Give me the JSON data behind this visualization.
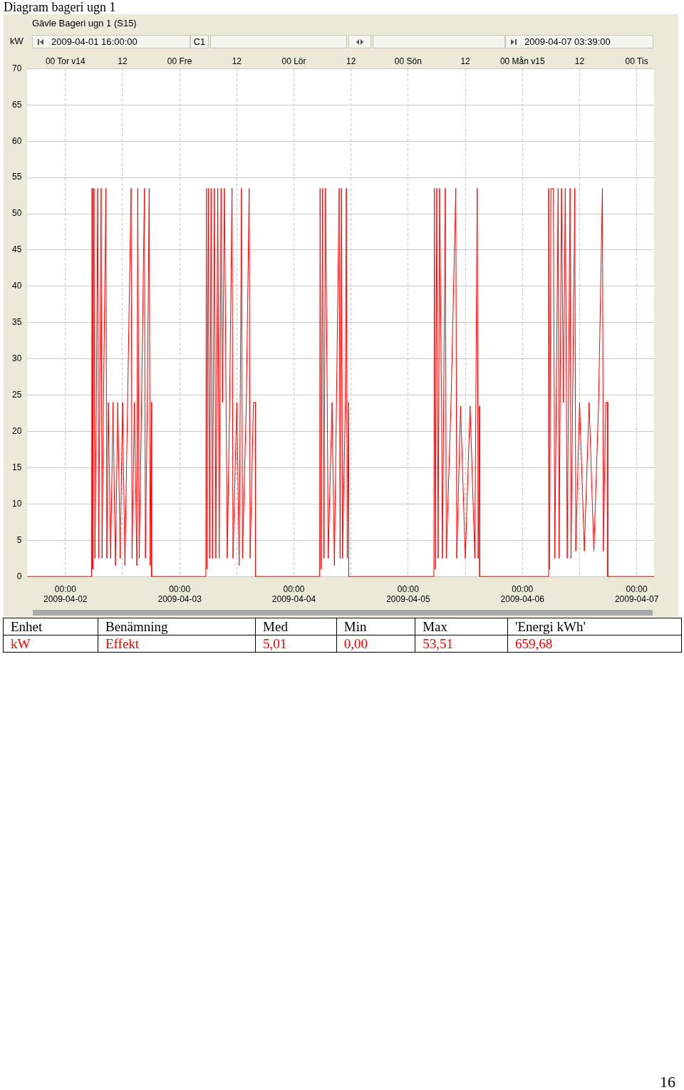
{
  "chart_data": {
    "type": "line",
    "title": "Diagram bageri ugn 1",
    "subtitle": "Gävle Bageri ugn 1 (S15)",
    "ylabel": "kW",
    "annotations": [
      "2009-04-01 16:00:00",
      "C1",
      "2009-04-07 03:39:00",
      "Enhet",
      "Benämning",
      "Med",
      "Min",
      "Max",
      "'Energi kWh'",
      "kW",
      "5,01",
      "0,00",
      "53,51",
      "659,68",
      "16"
    ],
    "xlim": [
      "2009-04-01T16:00",
      "2009-04-07T03:39"
    ],
    "xticks": [
      {
        "value": "2009-04-02T00:00",
        "label": "00:00 2009-04-02"
      },
      {
        "value": "2009-04-03T00:00",
        "label": "00:00 2009-04-03"
      },
      {
        "value": "2009-04-04T00:00",
        "label": "00:00 2009-04-04"
      },
      {
        "value": "2009-04-05T00:00",
        "label": "00:00 2009-04-05"
      },
      {
        "value": "2009-04-06T00:00",
        "label": "00:00 2009-04-06"
      },
      {
        "value": "2009-04-07T00:00",
        "label": "00:00 2009-04-07"
      }
    ],
    "x2lim": [
      "2009-04-01T16:00",
      "2009-04-07T03:39"
    ],
    "x2ticks": [
      {
        "value": "2009-04-02T00:00",
        "label": "00 Tor v14"
      },
      {
        "value": "2009-04-02T12:00",
        "label": "12"
      },
      {
        "value": "2009-04-03T00:00",
        "label": "00 Fre"
      },
      {
        "value": "2009-04-03T12:00",
        "label": "12"
      },
      {
        "value": "2009-04-04T00:00",
        "label": "00 Lör"
      },
      {
        "value": "2009-04-04T12:00",
        "label": "12"
      },
      {
        "value": "2009-04-05T00:00",
        "label": "00 Sön"
      },
      {
        "value": "2009-04-05T12:00",
        "label": "12"
      },
      {
        "value": "2009-04-06T00:00",
        "label": "00 Mån v15"
      },
      {
        "value": "2009-04-06T12:00",
        "label": "12"
      },
      {
        "value": "2009-04-07T00:00",
        "label": "00 Tis"
      }
    ],
    "ylim": [
      0,
      70
    ],
    "yticks": [
      0,
      5,
      10,
      15,
      20,
      25,
      30,
      35,
      40,
      45,
      50,
      55,
      60,
      65,
      70
    ],
    "grid": true,
    "marker": "none",
    "line_style": "solid",
    "legend": false,
    "series": [
      {
        "name": "Effekt",
        "color": "#ff0000",
        "x": [
          "2009-04-01T16:00",
          "2009-04-02T05:30",
          "2009-04-02T05:36",
          "2009-04-02T05:42",
          "2009-04-02T05:48",
          "2009-04-02T06:00",
          "2009-04-02T06:12",
          "2009-04-02T06:30",
          "2009-04-02T06:48",
          "2009-04-02T07:00",
          "2009-04-02T07:30",
          "2009-04-02T07:42",
          "2009-04-02T08:00",
          "2009-04-02T08:30",
          "2009-04-02T08:42",
          "2009-04-02T09:00",
          "2009-04-02T09:30",
          "2009-04-02T10:00",
          "2009-04-02T10:30",
          "2009-04-02T11:00",
          "2009-04-02T11:30",
          "2009-04-02T12:00",
          "2009-04-02T12:30",
          "2009-04-02T13:48",
          "2009-04-02T14:00",
          "2009-04-02T14:30",
          "2009-04-02T15:00",
          "2009-04-02T15:12",
          "2009-04-02T15:30",
          "2009-04-02T16:00",
          "2009-04-02T16:36",
          "2009-04-02T16:48",
          "2009-04-02T17:12",
          "2009-04-02T17:36",
          "2009-04-02T17:48",
          "2009-04-02T18:05",
          "2009-04-02T18:06",
          "2009-04-03T05:30",
          "2009-04-03T05:36",
          "2009-04-03T05:42",
          "2009-04-03T06:00",
          "2009-04-03T06:18",
          "2009-04-03T06:36",
          "2009-04-03T06:54",
          "2009-04-03T07:18",
          "2009-04-03T07:36",
          "2009-04-03T08:00",
          "2009-04-03T08:18",
          "2009-04-03T08:42",
          "2009-04-03T09:00",
          "2009-04-03T09:24",
          "2009-04-03T10:00",
          "2009-04-03T10:30",
          "2009-04-03T11:00",
          "2009-04-03T11:12",
          "2009-04-03T12:00",
          "2009-04-03T12:30",
          "2009-04-03T13:00",
          "2009-04-03T13:12",
          "2009-04-03T14:00",
          "2009-04-03T14:36",
          "2009-04-03T14:48",
          "2009-04-03T15:30",
          "2009-04-03T15:54",
          "2009-04-03T15:55",
          "2009-04-04T05:24",
          "2009-04-04T05:30",
          "2009-04-04T05:42",
          "2009-04-04T06:00",
          "2009-04-04T06:18",
          "2009-04-04T06:36",
          "2009-04-04T07:00",
          "2009-04-04T07:12",
          "2009-04-04T08:00",
          "2009-04-04T08:30",
          "2009-04-04T09:30",
          "2009-04-04T09:42",
          "2009-04-04T10:00",
          "2009-04-04T10:12",
          "2009-04-04T10:48",
          "2009-04-04T11:00",
          "2009-04-04T11:12",
          "2009-04-04T11:30",
          "2009-04-04T11:31",
          "2009-04-05T05:24",
          "2009-04-05T05:30",
          "2009-04-05T05:42",
          "2009-04-05T06:00",
          "2009-04-05T06:18",
          "2009-04-05T06:36",
          "2009-04-05T07:00",
          "2009-04-05T07:12",
          "2009-04-05T07:48",
          "2009-04-05T08:00",
          "2009-04-05T09:00",
          "2009-04-05T10:00",
          "2009-04-05T10:12",
          "2009-04-05T11:00",
          "2009-04-05T12:00",
          "2009-04-05T13:00",
          "2009-04-05T14:00",
          "2009-04-05T14:30",
          "2009-04-05T14:42",
          "2009-04-05T15:00",
          "2009-04-05T15:01",
          "2009-04-06T05:24",
          "2009-04-06T05:30",
          "2009-04-06T05:42",
          "2009-04-06T06:00",
          "2009-04-06T06:30",
          "2009-04-06T06:48",
          "2009-04-06T07:30",
          "2009-04-06T07:42",
          "2009-04-06T08:12",
          "2009-04-06T08:36",
          "2009-04-06T09:00",
          "2009-04-06T09:24",
          "2009-04-06T10:00",
          "2009-04-06T10:12",
          "2009-04-06T11:00",
          "2009-04-06T11:12",
          "2009-04-06T12:00",
          "2009-04-06T13:00",
          "2009-04-06T14:00",
          "2009-04-06T15:00",
          "2009-04-06T16:00",
          "2009-04-06T16:48",
          "2009-04-06T17:00",
          "2009-04-06T17:30",
          "2009-04-06T17:54",
          "2009-04-06T17:55",
          "2009-04-07T03:39"
        ],
        "values": [
          0,
          0,
          53.5,
          1,
          24,
          53.5,
          2.5,
          24,
          53.5,
          2.5,
          53.5,
          2.5,
          24,
          53.5,
          2.5,
          24,
          2.5,
          24,
          1.5,
          24,
          2.5,
          24,
          1.5,
          53.5,
          2.5,
          24,
          1.5,
          53.5,
          2.5,
          24,
          53.5,
          2.5,
          24,
          53.5,
          1.5,
          24,
          0,
          0,
          53.5,
          1,
          53.5,
          2.5,
          53.5,
          2.5,
          53.5,
          2.5,
          53.5,
          2.5,
          53.5,
          24,
          53.5,
          2.5,
          24,
          53.5,
          2.5,
          24,
          1.5,
          53.5,
          2.5,
          24,
          53.5,
          2.5,
          24,
          24,
          0,
          0,
          53.5,
          1,
          53.5,
          2.5,
          53.5,
          24,
          2.5,
          24,
          1.5,
          53.5,
          2.5,
          53.5,
          2.5,
          24,
          53.5,
          2.5,
          24,
          0,
          0,
          53.5,
          1,
          53.5,
          2.5,
          53.5,
          24,
          2.5,
          53.5,
          2.5,
          24,
          53.5,
          2.5,
          23.5,
          2.5,
          23.5,
          2.5,
          53.5,
          2.5,
          23.5,
          0,
          0,
          53.5,
          1,
          53.5,
          53.5,
          2.5,
          53.5,
          2.5,
          53.5,
          24,
          53.5,
          2.5,
          53.5,
          2.5,
          53.5,
          3.5,
          24,
          3.5,
          24,
          3.5,
          24,
          53.5,
          3.5,
          24,
          24,
          0,
          0
        ]
      }
    ]
  }
}
